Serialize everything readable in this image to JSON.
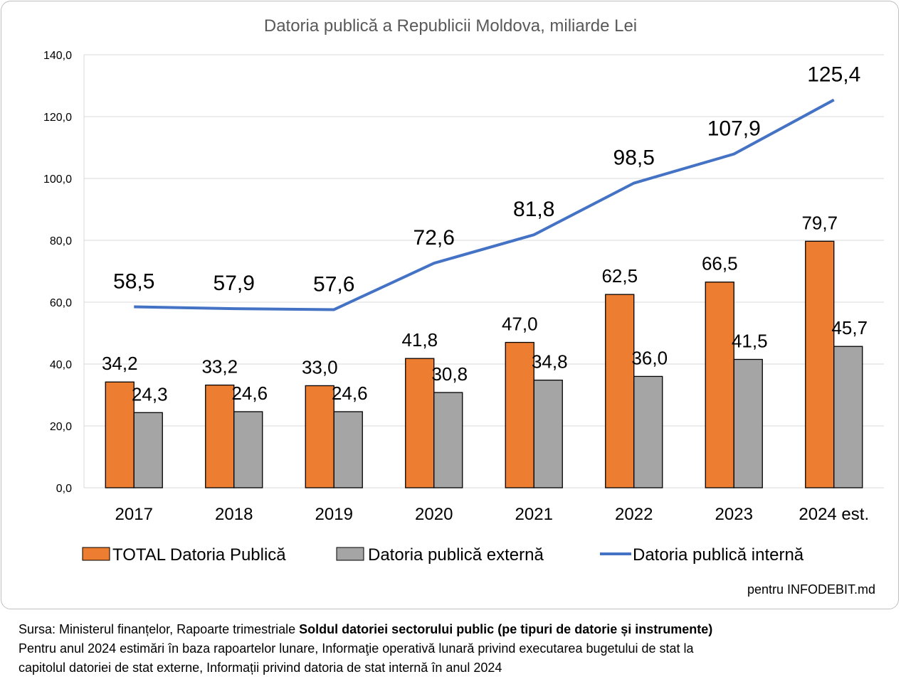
{
  "chart_data": {
    "type": "bar",
    "title": "Datoria publică a Republicii Moldova, miliarde Lei",
    "categories": [
      "2017",
      "2018",
      "2019",
      "2020",
      "2021",
      "2022",
      "2023",
      "2024 est."
    ],
    "ylim": [
      0,
      140
    ],
    "yticks": [
      "0,0",
      "20,0",
      "40,0",
      "60,0",
      "80,0",
      "100,0",
      "120,0",
      "140,0"
    ],
    "ytick_values": [
      0,
      20,
      40,
      60,
      80,
      100,
      120,
      140
    ],
    "grid": true,
    "legend_position": "bottom",
    "series": [
      {
        "name": "TOTAL Datoria Publică",
        "kind": "bar",
        "color": "#ed7d31",
        "values": [
          34.2,
          33.2,
          33.0,
          41.8,
          47.0,
          62.5,
          66.5,
          79.7
        ],
        "labels": [
          "34,2",
          "33,2",
          "33,0",
          "41,8",
          "47,0",
          "62,5",
          "66,5",
          "79,7"
        ]
      },
      {
        "name": "Datoria publică externă",
        "kind": "bar",
        "color": "#a5a5a5",
        "values": [
          24.3,
          24.6,
          24.6,
          30.8,
          34.8,
          36.0,
          41.5,
          45.7
        ],
        "labels": [
          "24,3",
          "24,6",
          "24,6",
          "30,8",
          "34,8",
          "36,0",
          "41,5",
          "45,7"
        ]
      },
      {
        "name": "Datoria publică internă",
        "kind": "line",
        "color": "#4472c4",
        "values": [
          58.5,
          57.9,
          57.6,
          72.6,
          81.8,
          98.5,
          107.9,
          125.4
        ],
        "labels": [
          "58,5",
          "57,9",
          "57,6",
          "72,6",
          "81,8",
          "98,5",
          "107,9",
          "125,4"
        ]
      }
    ]
  },
  "credit": "pentru INFODEBIT.md",
  "footer": {
    "line1_prefix": "Sursa: Ministerul finanțelor, Rapoarte trimestriale ",
    "line1_bold": "Soldul datoriei sectorului public (pe tipuri de datorie și instrumente)",
    "line2": "Pentru anul 2024 estimări în baza rapoartelor lunare,  Informaţie operativă lunară privind executarea bugetului de stat la",
    "line3": "capitolul datoriei de stat externe, Informații privind datoria de stat internă în anul 2024"
  }
}
